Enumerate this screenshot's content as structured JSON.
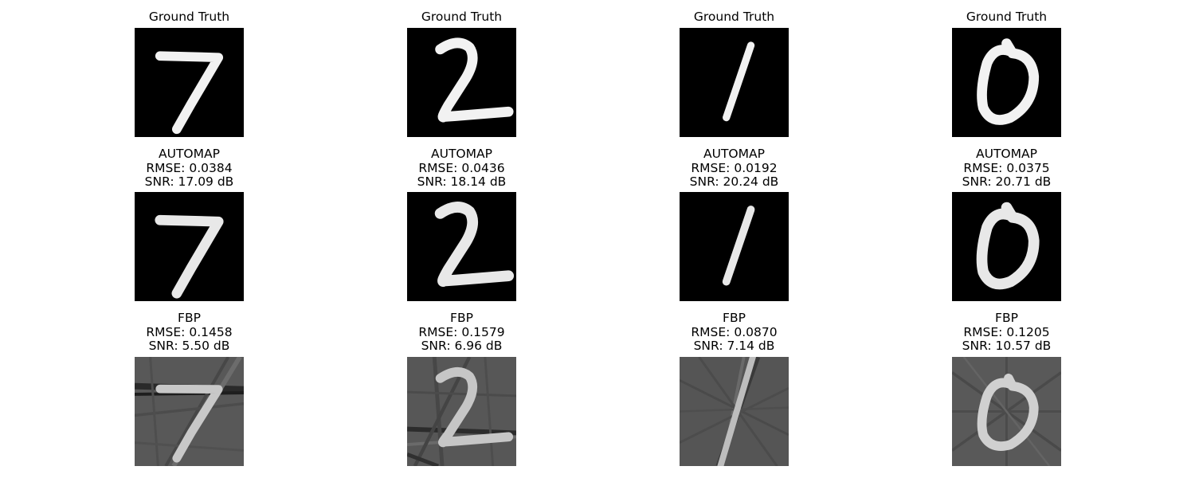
{
  "rows": [
    {
      "kind": "ground_truth",
      "cells": [
        {
          "lines": [
            "Ground Truth"
          ],
          "digit": "7"
        },
        {
          "lines": [
            "Ground Truth"
          ],
          "digit": "2"
        },
        {
          "lines": [
            "Ground Truth"
          ],
          "digit": "1"
        },
        {
          "lines": [
            "Ground Truth"
          ],
          "digit": "0"
        }
      ]
    },
    {
      "kind": "automap",
      "cells": [
        {
          "lines": [
            "AUTOMAP",
            "RMSE: 0.0384",
            "SNR: 17.09 dB"
          ],
          "digit": "7"
        },
        {
          "lines": [
            "AUTOMAP",
            "RMSE: 0.0436",
            "SNR: 18.14 dB"
          ],
          "digit": "2"
        },
        {
          "lines": [
            "AUTOMAP",
            "RMSE: 0.0192",
            "SNR: 20.24 dB"
          ],
          "digit": "1"
        },
        {
          "lines": [
            "AUTOMAP",
            "RMSE: 0.0375",
            "SNR: 20.71 dB"
          ],
          "digit": "0"
        }
      ]
    },
    {
      "kind": "fbp",
      "cells": [
        {
          "lines": [
            "FBP",
            "RMSE: 0.1458",
            "SNR: 5.50 dB"
          ],
          "digit": "7"
        },
        {
          "lines": [
            "FBP",
            "RMSE: 0.1579",
            "SNR: 6.96 dB"
          ],
          "digit": "2"
        },
        {
          "lines": [
            "FBP",
            "RMSE: 0.0870",
            "SNR: 7.14 dB"
          ],
          "digit": "1"
        },
        {
          "lines": [
            "FBP",
            "RMSE: 0.1205",
            "SNR: 10.57 dB"
          ],
          "digit": "0"
        }
      ]
    }
  ]
}
